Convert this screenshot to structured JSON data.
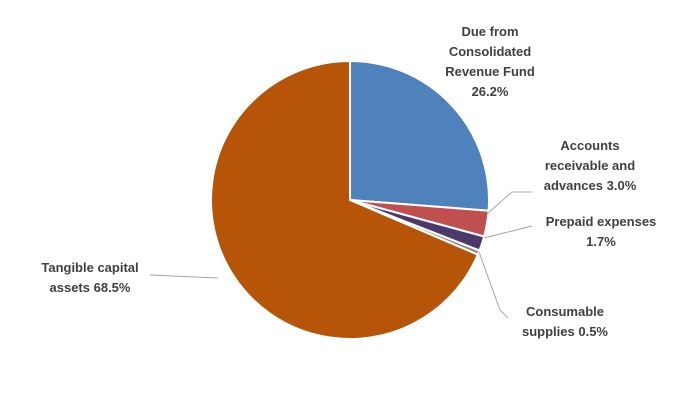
{
  "chart_data": {
    "type": "pie",
    "categories": [
      "Due from Consolidated Revenue Fund",
      "Accounts receivable and advances",
      "Prepaid expenses",
      "Consumable supplies",
      "Tangible capital assets"
    ],
    "values": [
      26.2,
      3.0,
      1.7,
      0.5,
      68.5
    ],
    "value_labels": [
      "26.2%",
      "3.0%",
      "1.7%",
      "0.5%",
      "68.5%"
    ],
    "colors": [
      "#4f81bd",
      "#c0504d",
      "#4b3a69",
      "#8c8c8c",
      "#b65408"
    ]
  }
}
